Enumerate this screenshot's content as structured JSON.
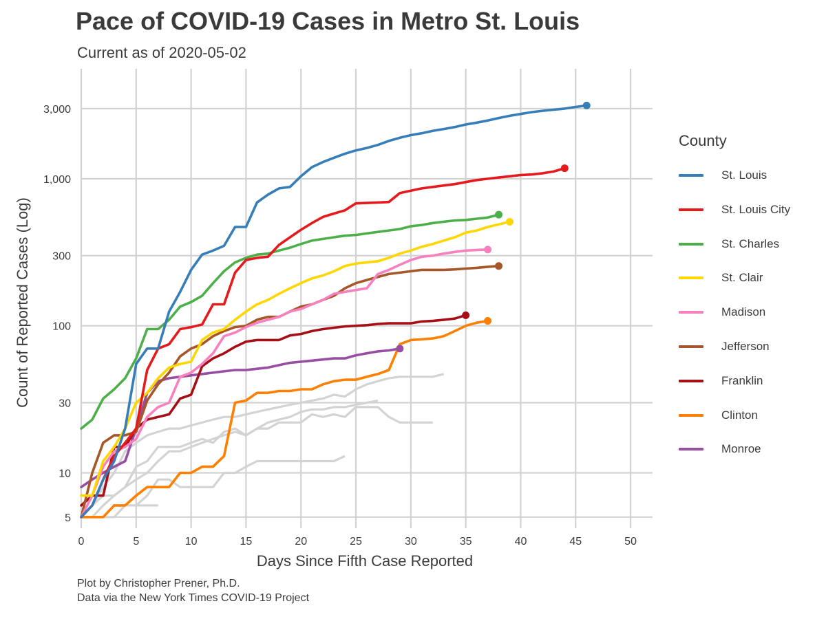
{
  "title": "Pace of COVID-19 Cases in Metro St. Louis",
  "subtitle": "Current as of 2020-05-02",
  "caption_line1": "Plot by Christopher Prener, Ph.D.",
  "caption_line2": "Data via the New York Times COVID-19 Project",
  "chart_data": {
    "type": "line",
    "title": "Pace of COVID-19 Cases in Metro St. Louis",
    "subtitle": "Current as of 2020-05-02",
    "xlabel": "Days Since Fifth Case Reported",
    "ylabel": "Count of Reported Cases (Log)",
    "y_scale": "log",
    "xlim": [
      0,
      52
    ],
    "ylim": [
      4.2,
      5600
    ],
    "x_ticks": [
      0,
      5,
      10,
      15,
      20,
      25,
      30,
      35,
      40,
      45,
      50
    ],
    "x_tick_labels": [
      "0",
      "5",
      "10",
      "15",
      "20",
      "25",
      "30",
      "35",
      "40",
      "45",
      "50"
    ],
    "y_ticks": [
      5,
      10,
      30,
      100,
      300,
      1000,
      3000
    ],
    "y_tick_labels": [
      "5",
      "10",
      "30",
      "100",
      "300",
      "1,000",
      "3,000"
    ],
    "grid": true,
    "legend_title": "County",
    "legend_position": "right",
    "series": [
      {
        "name": "St. Louis",
        "color": "#377eb8",
        "x": [
          0,
          1,
          2,
          3,
          4,
          5,
          6,
          7,
          8,
          9,
          10,
          11,
          12,
          13,
          14,
          15,
          16,
          17,
          18,
          19,
          20,
          21,
          22,
          23,
          24,
          25,
          26,
          27,
          28,
          29,
          30,
          31,
          32,
          33,
          34,
          35,
          36,
          37,
          38,
          39,
          40,
          41,
          42,
          43,
          44,
          45,
          46
        ],
        "y": [
          5,
          6,
          9,
          12,
          20,
          55,
          70,
          70,
          125,
          170,
          240,
          305,
          325,
          350,
          470,
          470,
          690,
          780,
          860,
          880,
          1040,
          1200,
          1300,
          1390,
          1480,
          1560,
          1620,
          1700,
          1810,
          1900,
          1980,
          2040,
          2120,
          2180,
          2250,
          2340,
          2410,
          2490,
          2590,
          2680,
          2760,
          2840,
          2900,
          2950,
          3000,
          3080,
          3150
        ]
      },
      {
        "name": "St. Louis City",
        "color": "#e41a1c",
        "x": [
          0,
          1,
          2,
          3,
          4,
          5,
          6,
          7,
          8,
          9,
          10,
          11,
          12,
          13,
          14,
          15,
          16,
          17,
          18,
          19,
          20,
          21,
          22,
          23,
          24,
          25,
          26,
          27,
          28,
          29,
          30,
          31,
          32,
          33,
          34,
          35,
          36,
          37,
          38,
          39,
          40,
          41,
          42,
          43,
          44
        ],
        "y": [
          5,
          6,
          9,
          13,
          16,
          20,
          50,
          70,
          75,
          95,
          98,
          102,
          140,
          140,
          230,
          280,
          290,
          295,
          355,
          400,
          450,
          500,
          550,
          580,
          610,
          680,
          685,
          690,
          695,
          800,
          830,
          860,
          880,
          900,
          920,
          950,
          980,
          1000,
          1020,
          1040,
          1060,
          1070,
          1090,
          1120,
          1180
        ]
      },
      {
        "name": "St. Charles",
        "color": "#4daf4a",
        "x": [
          0,
          1,
          2,
          3,
          4,
          5,
          6,
          7,
          8,
          9,
          10,
          11,
          12,
          13,
          14,
          15,
          16,
          17,
          18,
          19,
          20,
          21,
          22,
          23,
          24,
          25,
          26,
          27,
          28,
          29,
          30,
          31,
          32,
          33,
          34,
          35,
          36,
          37,
          38
        ],
        "y": [
          20,
          23,
          32,
          37,
          44,
          60,
          95,
          95,
          110,
          135,
          145,
          160,
          195,
          235,
          270,
          290,
          305,
          310,
          325,
          340,
          360,
          380,
          390,
          400,
          410,
          415,
          425,
          435,
          445,
          455,
          475,
          485,
          500,
          510,
          520,
          525,
          535,
          545,
          570
        ]
      },
      {
        "name": "St. Clair",
        "color": "#ffd700",
        "x": [
          0,
          1,
          2,
          3,
          4,
          5,
          6,
          7,
          8,
          9,
          10,
          11,
          12,
          13,
          14,
          15,
          16,
          17,
          18,
          19,
          20,
          21,
          22,
          23,
          24,
          25,
          26,
          27,
          28,
          29,
          30,
          31,
          32,
          33,
          34,
          35,
          36,
          37,
          38,
          39
        ],
        "y": [
          7,
          7,
          12,
          15,
          20,
          30,
          35,
          44,
          52,
          55,
          57,
          80,
          90,
          95,
          110,
          125,
          140,
          150,
          165,
          180,
          195,
          210,
          220,
          235,
          255,
          265,
          270,
          275,
          290,
          310,
          325,
          345,
          360,
          380,
          400,
          430,
          445,
          470,
          490,
          510
        ]
      },
      {
        "name": "Madison",
        "color": "#f781bf",
        "x": [
          0,
          1,
          2,
          3,
          4,
          5,
          6,
          7,
          8,
          9,
          10,
          11,
          12,
          13,
          14,
          15,
          16,
          17,
          18,
          19,
          20,
          21,
          22,
          23,
          24,
          25,
          26,
          27,
          28,
          29,
          30,
          31,
          32,
          33,
          34,
          35,
          36,
          37
        ],
        "y": [
          5,
          7,
          11,
          14,
          15,
          17,
          24,
          28,
          30,
          45,
          48,
          55,
          65,
          85,
          90,
          98,
          105,
          110,
          115,
          125,
          130,
          140,
          150,
          165,
          170,
          175,
          180,
          225,
          240,
          260,
          280,
          295,
          300,
          310,
          318,
          325,
          328,
          330
        ]
      },
      {
        "name": "Jefferson",
        "color": "#a65628",
        "x": [
          0,
          1,
          2,
          3,
          4,
          5,
          6,
          7,
          8,
          9,
          10,
          11,
          12,
          13,
          14,
          15,
          16,
          17,
          18,
          19,
          20,
          21,
          22,
          23,
          24,
          25,
          26,
          27,
          28,
          29,
          30,
          31,
          32,
          33,
          34,
          35,
          36,
          37,
          38
        ],
        "y": [
          5,
          10,
          16,
          18,
          18,
          19,
          31,
          40,
          48,
          62,
          70,
          75,
          85,
          92,
          98,
          100,
          110,
          115,
          115,
          125,
          135,
          140,
          150,
          160,
          180,
          195,
          205,
          215,
          225,
          230,
          235,
          240,
          240,
          240,
          242,
          245,
          248,
          252,
          255
        ]
      },
      {
        "name": "Franklin",
        "color": "#a50f15",
        "x": [
          0,
          1,
          2,
          3,
          4,
          5,
          6,
          7,
          8,
          9,
          10,
          11,
          12,
          13,
          14,
          15,
          16,
          17,
          18,
          19,
          20,
          21,
          22,
          23,
          24,
          25,
          26,
          27,
          28,
          29,
          30,
          31,
          32,
          33,
          34,
          35
        ],
        "y": [
          6,
          7,
          7,
          15,
          15,
          20,
          23,
          24,
          25,
          32,
          34,
          53,
          60,
          65,
          72,
          78,
          80,
          80,
          80,
          86,
          88,
          92,
          95,
          97,
          99,
          100,
          101,
          103,
          104,
          104,
          104,
          107,
          108,
          110,
          112,
          118
        ]
      },
      {
        "name": "Clinton",
        "color": "#ff7f00",
        "x": [
          0,
          1,
          2,
          3,
          4,
          5,
          6,
          7,
          8,
          9,
          10,
          11,
          12,
          13,
          14,
          15,
          16,
          17,
          18,
          19,
          20,
          21,
          22,
          23,
          24,
          25,
          26,
          27,
          28,
          29,
          30,
          31,
          32,
          33,
          34,
          35,
          36,
          37
        ],
        "y": [
          5,
          5,
          5,
          6,
          6,
          7,
          8,
          8,
          8,
          10,
          10,
          11,
          11,
          13,
          30,
          31,
          35,
          35,
          36,
          36,
          37,
          37,
          40,
          42,
          43,
          43,
          45,
          47,
          50,
          75,
          80,
          81,
          82,
          85,
          92,
          100,
          105,
          108
        ]
      },
      {
        "name": "Monroe",
        "color": "#984ea3",
        "x": [
          0,
          1,
          2,
          3,
          4,
          5,
          6,
          7,
          8,
          9,
          10,
          11,
          12,
          13,
          14,
          15,
          16,
          17,
          18,
          19,
          20,
          21,
          22,
          23,
          24,
          25,
          26,
          27,
          28,
          29
        ],
        "y": [
          8,
          9,
          10,
          11,
          12,
          20,
          35,
          42,
          44,
          45,
          46,
          47,
          48,
          49,
          50,
          50,
          51,
          52,
          54,
          56,
          57,
          58,
          59,
          60,
          60,
          63,
          65,
          67,
          68,
          70
        ]
      }
    ],
    "other_series": [
      {
        "x": [
          0,
          1,
          2,
          3,
          4,
          5,
          6,
          7,
          8,
          9,
          10,
          11,
          12,
          13,
          14,
          15,
          16,
          17,
          18,
          19,
          20,
          21,
          22,
          23,
          24,
          25,
          26,
          27,
          28,
          29,
          30,
          31,
          32,
          33
        ],
        "y": [
          5,
          6,
          8,
          10,
          14,
          16,
          18,
          19,
          20,
          20,
          21,
          22,
          23,
          24,
          24,
          25,
          26,
          27,
          28,
          29,
          30,
          31,
          32,
          34,
          33,
          37,
          40,
          42,
          44,
          45,
          45,
          45,
          45,
          47
        ]
      },
      {
        "x": [
          0,
          1,
          2,
          3,
          4,
          5,
          6,
          7,
          8,
          9,
          10,
          11,
          12,
          13,
          14,
          15,
          16,
          17,
          18,
          19,
          20,
          21,
          22,
          23,
          24,
          25,
          26,
          27
        ],
        "y": [
          5,
          6,
          7,
          7,
          8,
          9,
          10,
          12,
          14,
          14,
          15,
          16,
          17,
          18,
          19,
          18,
          20,
          22,
          23,
          24,
          26,
          27,
          27,
          28,
          28,
          29,
          30,
          31
        ]
      },
      {
        "x": [
          0,
          1,
          2,
          3,
          4,
          5,
          6,
          7,
          8,
          9,
          10,
          11,
          12,
          13,
          14,
          15,
          16,
          17,
          18,
          19,
          20,
          21,
          22,
          23,
          24,
          25,
          26,
          27,
          28,
          29,
          30,
          31,
          32
        ],
        "y": [
          5,
          5,
          6,
          7,
          8,
          11,
          12,
          15,
          15,
          15,
          16,
          17,
          16,
          19,
          20,
          18,
          20,
          20,
          22,
          22,
          22,
          25,
          24,
          25,
          24,
          28,
          28,
          28,
          24,
          22,
          22,
          22,
          22
        ]
      },
      {
        "x": [
          0,
          1,
          2,
          3,
          4,
          5,
          6,
          7,
          8,
          9,
          10,
          11,
          12,
          13,
          14,
          15,
          16,
          17,
          18,
          19,
          20,
          21,
          22,
          23,
          24
        ],
        "y": [
          5,
          5,
          5,
          6,
          6,
          6,
          7,
          9,
          9,
          8,
          8,
          8,
          8,
          10,
          10,
          11,
          12,
          12,
          12,
          12,
          12,
          12,
          12,
          12,
          13
        ]
      },
      {
        "x": [
          0,
          1,
          2,
          3,
          4,
          5,
          6,
          7
        ],
        "y": [
          5,
          5,
          5,
          5,
          6,
          6,
          6,
          6
        ]
      }
    ]
  }
}
